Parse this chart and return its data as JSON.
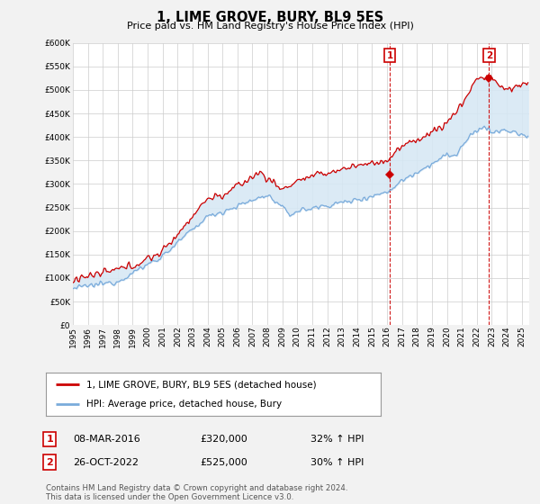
{
  "title": "1, LIME GROVE, BURY, BL9 5ES",
  "subtitle": "Price paid vs. HM Land Registry's House Price Index (HPI)",
  "ylim": [
    0,
    600000
  ],
  "yticks": [
    0,
    50000,
    100000,
    150000,
    200000,
    250000,
    300000,
    350000,
    400000,
    450000,
    500000,
    550000,
    600000
  ],
  "xlim_start": 1995.0,
  "xlim_end": 2025.5,
  "bg_color": "#f2f2f2",
  "plot_bg": "#ffffff",
  "grid_color": "#cccccc",
  "sale1_date": 2016.18,
  "sale1_price": 320000,
  "sale1_label": "1",
  "sale2_date": 2022.82,
  "sale2_price": 525000,
  "sale2_label": "2",
  "red_line_color": "#cc0000",
  "blue_line_color": "#7aabdb",
  "fill_color": "#d6e8f5",
  "sale_marker_color": "#cc0000",
  "annotation1_date": "08-MAR-2016",
  "annotation1_price": "£320,000",
  "annotation1_hpi": "32% ↑ HPI",
  "annotation2_date": "26-OCT-2022",
  "annotation2_price": "£525,000",
  "annotation2_hpi": "30% ↑ HPI",
  "legend_label1": "1, LIME GROVE, BURY, BL9 5ES (detached house)",
  "legend_label2": "HPI: Average price, detached house, Bury",
  "footer": "Contains HM Land Registry data © Crown copyright and database right 2024.\nThis data is licensed under the Open Government Licence v3.0."
}
